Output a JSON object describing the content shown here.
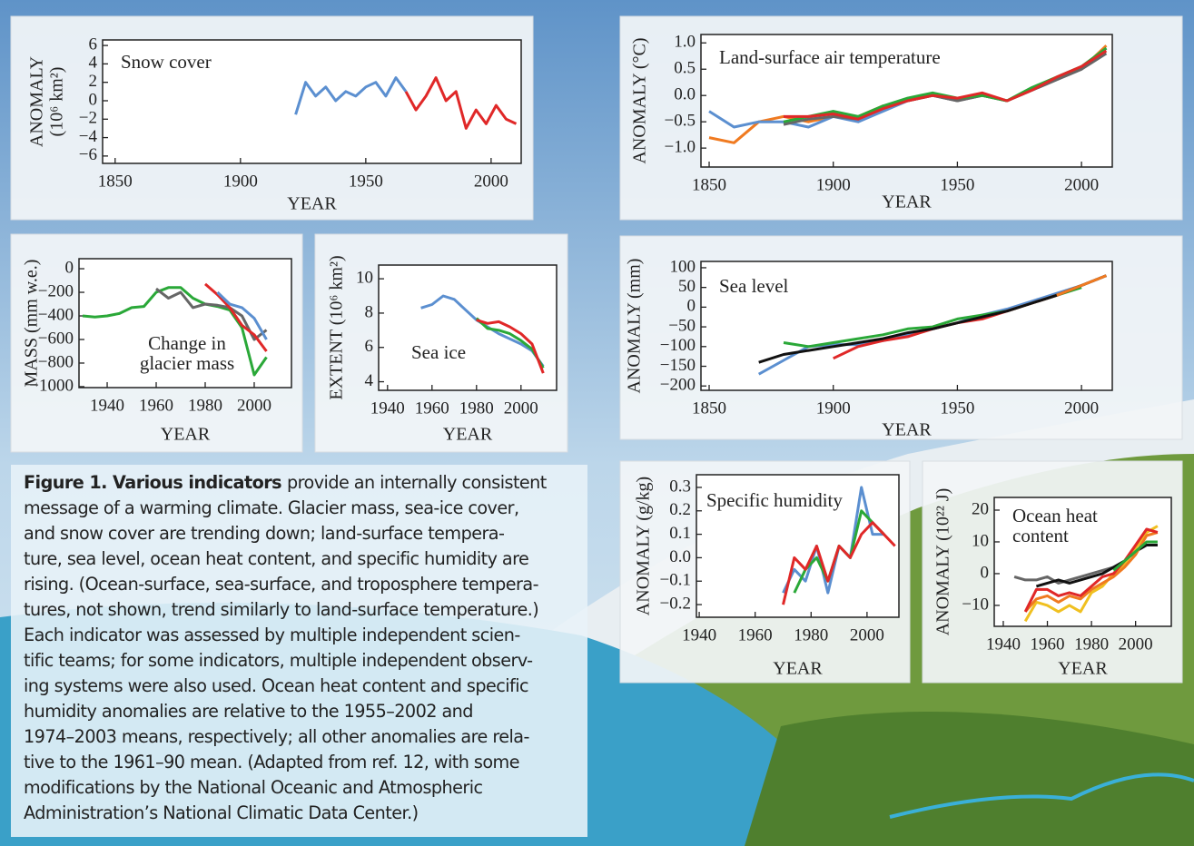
{
  "chart_data": [
    {
      "type": "line",
      "title": "Snow cover",
      "ylabel": [
        "ANOMALY",
        "(10⁶ km²)"
      ],
      "xlabel": "YEAR",
      "x": [
        1922,
        1926,
        1930,
        1934,
        1938,
        1942,
        1946,
        1950,
        1954,
        1958,
        1962,
        1966,
        1970,
        1974,
        1978,
        1982,
        1986,
        1990,
        1994,
        1998,
        2002,
        2006,
        2010
      ],
      "series": [
        {
          "color": "#5b8fd0",
          "values": [
            -1.5,
            2,
            0.5,
            1.5,
            0,
            1,
            0.5,
            1.5,
            2,
            0.5,
            2.5,
            1,
            null,
            null,
            null,
            null,
            null,
            null,
            null,
            null,
            null,
            null,
            null
          ]
        },
        {
          "color": "#e02828",
          "values": [
            null,
            null,
            null,
            null,
            null,
            null,
            null,
            null,
            null,
            null,
            null,
            1,
            -1,
            0.5,
            2.5,
            0,
            1,
            -3,
            -1,
            -2.5,
            -0.5,
            -2,
            -2.5
          ]
        }
      ],
      "xlim": [
        1845,
        2012
      ],
      "xticks": [
        1850,
        1900,
        1950,
        2000
      ],
      "ylim": [
        -6.8,
        6.6
      ],
      "yticks": [
        {
          "value": -6,
          "label": "−6"
        },
        {
          "value": -4,
          "label": "−4"
        },
        {
          "value": -2,
          "label": "−2"
        },
        0,
        2,
        4,
        6
      ]
    },
    {
      "type": "line",
      "title": "Land-surface air temperature",
      "ylabel": [
        "ANOMALY (°C)"
      ],
      "xlabel": "YEAR",
      "x": [
        1850,
        1860,
        1870,
        1880,
        1890,
        1900,
        1910,
        1920,
        1930,
        1940,
        1950,
        1960,
        1970,
        1980,
        1990,
        2000,
        2010
      ],
      "series": [
        {
          "color": "#f07a20",
          "values": [
            -0.8,
            -0.9,
            -0.5,
            -0.4,
            -0.5,
            -0.4,
            -0.4,
            -0.2,
            -0.1,
            0.0,
            -0.1,
            0.0,
            -0.1,
            0.1,
            0.3,
            0.5,
            0.95
          ]
        },
        {
          "color": "#5b8fd0",
          "values": [
            -0.3,
            -0.6,
            -0.5,
            -0.5,
            -0.6,
            -0.4,
            -0.5,
            -0.3,
            -0.1,
            0.0,
            -0.1,
            0.0,
            -0.1,
            0.1,
            0.3,
            0.5,
            0.9
          ]
        },
        {
          "color": "#666666",
          "values": [
            null,
            null,
            null,
            -0.55,
            -0.45,
            -0.4,
            -0.45,
            -0.2,
            -0.1,
            0,
            -0.1,
            0,
            -0.1,
            0.1,
            0.3,
            0.5,
            0.8
          ]
        },
        {
          "color": "#2aa838",
          "values": [
            null,
            null,
            null,
            -0.5,
            -0.4,
            -0.3,
            -0.4,
            -0.2,
            -0.05,
            0.05,
            -0.05,
            0.0,
            -0.1,
            0.15,
            0.35,
            0.55,
            0.9
          ]
        },
        {
          "color": "#e02828",
          "values": [
            null,
            null,
            null,
            -0.4,
            -0.4,
            -0.35,
            -0.45,
            -0.25,
            -0.1,
            0.0,
            -0.05,
            0.05,
            -0.1,
            0.1,
            0.35,
            0.55,
            0.85
          ]
        }
      ],
      "xlim": [
        1846.7,
        2012.4
      ],
      "xticks": [
        1850,
        1900,
        1950,
        2000
      ],
      "ylim": [
        -1.36,
        1.16
      ],
      "yticks": [
        {
          "value": -1,
          "label": "−1.0"
        },
        {
          "value": -0.5,
          "label": "−0.5"
        },
        {
          "value": 0,
          "label": "0.0"
        },
        0.5,
        {
          "value": 1,
          "label": "1.0"
        }
      ]
    },
    {
      "type": "line",
      "title": [
        "Change in",
        "glacier mass"
      ],
      "ylabel": [
        "MASS (mm w.e.)"
      ],
      "xlabel": "YEAR",
      "x": [
        1930,
        1935,
        1940,
        1945,
        1950,
        1955,
        1960,
        1965,
        1970,
        1975,
        1980,
        1985,
        1990,
        1995,
        2000,
        2005
      ],
      "series": [
        {
          "color": "#2aa838",
          "values": [
            -400,
            -410,
            -400,
            -380,
            -330,
            -320,
            -200,
            -160,
            -160,
            -250,
            -300,
            -320,
            -350,
            -500,
            -900,
            -750
          ]
        },
        {
          "color": "#666666",
          "values": [
            null,
            null,
            null,
            null,
            null,
            null,
            -170,
            -250,
            -200,
            -330,
            -300,
            -310,
            -330,
            -400,
            -600,
            -520
          ]
        },
        {
          "color": "#e02828",
          "values": [
            null,
            null,
            null,
            null,
            null,
            null,
            null,
            null,
            null,
            null,
            -130,
            -220,
            -330,
            -480,
            -560,
            -700
          ]
        },
        {
          "color": "#5b8fd0",
          "values": [
            null,
            null,
            null,
            null,
            null,
            null,
            null,
            null,
            null,
            null,
            null,
            -200,
            -300,
            -330,
            -420,
            -600
          ]
        }
      ],
      "xlim": [
        1928.5,
        2015.2
      ],
      "xticks": [
        1940,
        1960,
        1980,
        2000
      ],
      "ylim": [
        -1008,
        85
      ],
      "yticks": [
        {
          "value": -1000,
          "label": "−1000"
        },
        {
          "value": -800,
          "label": "−800"
        },
        {
          "value": -600,
          "label": "−600"
        },
        {
          "value": -400,
          "label": "−400"
        },
        {
          "value": -200,
          "label": "−200"
        },
        0
      ]
    },
    {
      "type": "line",
      "title": "Sea ice",
      "ylabel": [
        "EXTENT (10⁶ km²)"
      ],
      "xlabel": "YEAR",
      "x": [
        1955,
        1960,
        1965,
        1970,
        1975,
        1980,
        1985,
        1990,
        1995,
        2000,
        2005,
        2010
      ],
      "series": [
        {
          "color": "#5b8fd0",
          "values": [
            8.3,
            8.5,
            9,
            8.8,
            8.2,
            7.6,
            7.2,
            6.8,
            6.5,
            6.2,
            5.8,
            4.9
          ]
        },
        {
          "color": "#2aa838",
          "values": [
            null,
            null,
            null,
            null,
            null,
            7.7,
            7.1,
            7.0,
            6.8,
            6.4,
            5.9,
            4.8
          ]
        },
        {
          "color": "#e02828",
          "values": [
            null,
            null,
            null,
            null,
            null,
            7.6,
            7.4,
            7.5,
            7.2,
            6.8,
            6.2,
            4.5
          ]
        }
      ],
      "xlim": [
        1936,
        2016
      ],
      "xticks": [
        1940,
        1960,
        1980,
        2000
      ],
      "ylim": [
        3.5,
        10.8
      ],
      "yticks": [
        4,
        6,
        8,
        10
      ]
    },
    {
      "type": "line",
      "title": "Sea level",
      "ylabel": [
        "ANOMALY (mm)"
      ],
      "xlabel": "YEAR",
      "x": [
        1870,
        1880,
        1890,
        1900,
        1910,
        1920,
        1930,
        1940,
        1950,
        1960,
        1970,
        1980,
        1990,
        2000,
        2010
      ],
      "series": [
        {
          "color": "#5b8fd0",
          "values": [
            -170,
            -135,
            -100,
            -95,
            -95,
            -85,
            -70,
            -55,
            -40,
            -20,
            -5,
            15,
            35,
            55,
            80
          ]
        },
        {
          "color": "#2aa838",
          "values": [
            null,
            -90,
            -100,
            -90,
            -80,
            -70,
            -55,
            -50,
            -30,
            -20,
            -10,
            10,
            30,
            50,
            null
          ]
        },
        {
          "color": "#e02828",
          "values": [
            null,
            null,
            null,
            -130,
            -100,
            -85,
            -75,
            -55,
            -40,
            -30,
            -10,
            10,
            30,
            55,
            null
          ]
        },
        {
          "color": "#111111",
          "values": [
            -140,
            -120,
            -110,
            -100,
            -90,
            -80,
            -65,
            -55,
            -40,
            -25,
            -10,
            10,
            30,
            55,
            80
          ]
        },
        {
          "color": "#f07a20",
          "values": [
            null,
            null,
            null,
            null,
            null,
            null,
            null,
            null,
            null,
            null,
            null,
            null,
            30,
            55,
            80
          ]
        }
      ],
      "xlim": [
        1846.7,
        2012.4
      ],
      "xticks": [
        1850,
        1900,
        1950,
        2000
      ],
      "ylim": [
        -211,
        116
      ],
      "yticks": [
        {
          "value": -200,
          "label": "−200"
        },
        {
          "value": -150,
          "label": "−150"
        },
        {
          "value": -100,
          "label": "−100"
        },
        {
          "value": -50,
          "label": "−50"
        },
        0,
        50,
        100
      ]
    },
    {
      "type": "line",
      "title": "Specific humidity",
      "ylabel": [
        "ANOMALY (g/kg)"
      ],
      "xlabel": "YEAR",
      "x": [
        1970,
        1974,
        1978,
        1982,
        1986,
        1990,
        1994,
        1998,
        2002,
        2006,
        2010
      ],
      "series": [
        {
          "color": "#5b8fd0",
          "values": [
            -0.15,
            -0.05,
            -0.1,
            0.05,
            -0.15,
            0.05,
            0.0,
            0.3,
            0.1,
            0.1,
            null
          ]
        },
        {
          "color": "#2aa838",
          "values": [
            null,
            -0.15,
            -0.05,
            0.0,
            -0.1,
            0.05,
            0.0,
            0.2,
            0.15,
            0.1,
            null
          ]
        },
        {
          "color": "#e02828",
          "values": [
            -0.2,
            0.0,
            -0.05,
            0.05,
            -0.1,
            0.05,
            0.0,
            0.1,
            0.15,
            0.1,
            0.05
          ]
        }
      ],
      "xlim": [
        1939,
        2011.4
      ],
      "xticks": [
        1940,
        1960,
        1980,
        2000
      ],
      "ylim": [
        -0.254,
        0.354
      ],
      "yticks": [
        {
          "value": -0.2,
          "label": "−0.2"
        },
        {
          "value": -0.1,
          "label": "−0.1"
        },
        {
          "value": 0,
          "label": "0.0"
        },
        0.1,
        0.2,
        0.3
      ]
    },
    {
      "type": "line",
      "title": [
        "Ocean heat",
        "content"
      ],
      "ylabel": [
        "ANOMALY (10²² J)"
      ],
      "xlabel": "YEAR",
      "x": [
        1945,
        1950,
        1955,
        1960,
        1965,
        1970,
        1975,
        1980,
        1985,
        1990,
        1995,
        2000,
        2005,
        2010
      ],
      "series": [
        {
          "color": "#666666",
          "values": [
            -1,
            -2,
            -2,
            -1,
            -3,
            -2,
            -1,
            0,
            1,
            2,
            4,
            7,
            9,
            9
          ]
        },
        {
          "color": "#111111",
          "values": [
            null,
            null,
            -4,
            -3,
            -2,
            -3,
            -2,
            -1,
            0,
            2,
            4,
            7,
            9,
            9
          ]
        },
        {
          "color": "#f0c020",
          "values": [
            null,
            -15,
            -9,
            -10,
            -12,
            -10,
            -12,
            -6,
            -4,
            0,
            3,
            8,
            13,
            15
          ]
        },
        {
          "color": "#f07a20",
          "values": [
            null,
            -12,
            -8,
            -7,
            -9,
            -7,
            -8,
            -5,
            -3,
            -1,
            2,
            6,
            12,
            13
          ]
        },
        {
          "color": "#e02828",
          "values": [
            null,
            -12,
            -5,
            -5,
            -7,
            -6,
            -7,
            -4,
            -1,
            0,
            4,
            9,
            14,
            13
          ]
        },
        {
          "color": "#2aa838",
          "values": [
            null,
            null,
            null,
            null,
            null,
            null,
            null,
            null,
            null,
            1,
            4,
            7,
            10,
            10
          ]
        }
      ],
      "xlim": [
        1935.9,
        2016.2
      ],
      "xticks": [
        1940,
        1960,
        1980,
        2000
      ],
      "ylim": [
        -16.6,
        24
      ],
      "yticks": [
        {
          "value": -10,
          "label": "−10"
        },
        0,
        10,
        20
      ]
    }
  ],
  "caption": {
    "lead": "Figure 1. Various indicators",
    "lines": [
      "provide an internally consistent",
      "message of a warming climate. Glacier mass, sea-ice cover,",
      "and snow cover are trending down; land-surface tempera-",
      "ture, sea level, ocean heat content, and specific humidity are",
      "rising. (Ocean-surface, sea-surface, and troposphere tempera-",
      "tures, not shown, trend similarly to land-surface temperature.)",
      "Each indicator was assessed by multiple independent scien-",
      "tific teams; for some indicators, multiple independent observ-",
      "ing systems were also used. Ocean heat content and specific",
      "humidity anomalies are relative to the 1955–2002 and",
      "1974–2003 means, respectively; all other anomalies are rela-",
      "tive to the 1961–90 mean. (Adapted from ref. 12, with some",
      "modifications by the National Oceanic and Atmospheric",
      "Administration’s National Climatic Data Center.)"
    ]
  }
}
